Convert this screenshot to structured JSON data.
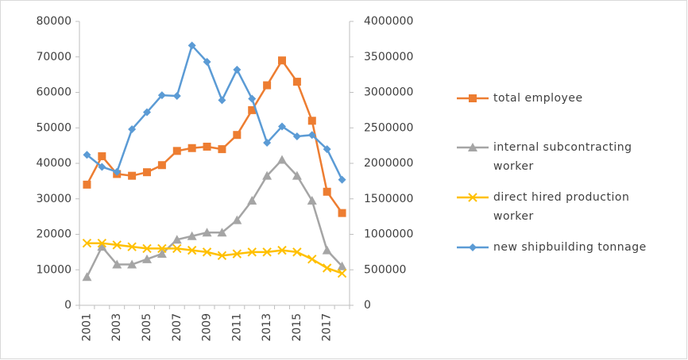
{
  "chart_data": {
    "type": "line",
    "categories": [
      "2001",
      null,
      "2003",
      null,
      "2005",
      null,
      "2007",
      null,
      "2009",
      null,
      "2011",
      null,
      "2013",
      null,
      "2015",
      null,
      "2017",
      null
    ],
    "ylim": [
      0,
      80000
    ],
    "yticks": [
      0,
      10000,
      20000,
      30000,
      40000,
      50000,
      60000,
      70000,
      80000
    ],
    "y2lim": [
      0,
      4000000
    ],
    "y2ticks": [
      0,
      500000,
      1000000,
      1500000,
      2000000,
      2500000,
      3000000,
      3500000,
      4000000
    ],
    "legend": "right",
    "grid": false,
    "series": [
      {
        "name": "total employee",
        "color": "#ed7d31",
        "marker": "square",
        "values": [
          34000,
          42000,
          37000,
          36500,
          37500,
          39500,
          43500,
          44300,
          44700,
          44000,
          48000,
          55000,
          62000,
          69000,
          63000,
          52000,
          32000,
          26000
        ]
      },
      {
        "name": "internal subcontracting worker",
        "color": "#a5a5a5",
        "marker": "triangle",
        "values": [
          8000,
          16500,
          11500,
          11500,
          13000,
          14500,
          18500,
          19500,
          20500,
          20500,
          24000,
          29500,
          36500,
          41000,
          36500,
          29500,
          15500,
          11000
        ]
      },
      {
        "name": "direct hired production worker",
        "color": "#ffc000",
        "marker": "x",
        "values": [
          17500,
          17500,
          17000,
          16500,
          16000,
          16000,
          16000,
          15500,
          15000,
          14000,
          14500,
          15000,
          15000,
          15500,
          15000,
          13000,
          10500,
          9000
        ]
      },
      {
        "name": "new shipbuilding tonnage",
        "color": "#5b9bd5",
        "marker": "diamond",
        "axis": "y2",
        "values": [
          2120000,
          1950000,
          1880000,
          2480000,
          2720000,
          2960000,
          2950000,
          3660000,
          3430000,
          2890000,
          3320000,
          2910000,
          2290000,
          2520000,
          2380000,
          2400000,
          2200000,
          1770000
        ]
      }
    ]
  }
}
